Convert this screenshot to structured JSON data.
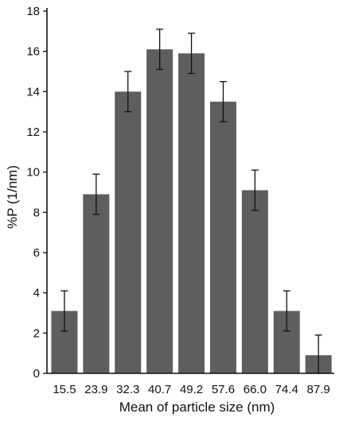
{
  "chart_data": {
    "type": "bar",
    "title": "",
    "xlabel": "Mean of particle size (nm)",
    "ylabel": "%P (1/nm)",
    "categories": [
      "15.5",
      "23.9",
      "32.3",
      "40.7",
      "49.2",
      "57.6",
      "66.0",
      "74.4",
      "87.9"
    ],
    "values": [
      3.1,
      8.9,
      14.0,
      16.1,
      15.9,
      13.5,
      9.1,
      3.1,
      0.9
    ],
    "error": [
      1.0,
      1.0,
      1.0,
      1.0,
      1.0,
      1.0,
      1.0,
      1.0,
      1.0
    ],
    "ylim": [
      0,
      18
    ],
    "yticks": [
      "0",
      "2",
      "4",
      "6",
      "8",
      "10",
      "12",
      "14",
      "16",
      "18"
    ],
    "grid": false,
    "legend": "none",
    "colors": {
      "bar": "#5e5e5e",
      "axis": "#111111",
      "error_bar": "#111111"
    }
  }
}
